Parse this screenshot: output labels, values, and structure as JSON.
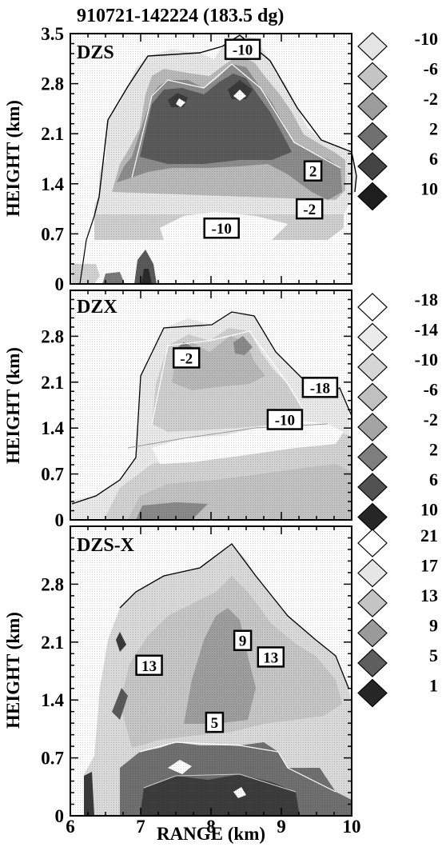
{
  "title": "910721-142224 (183.5 dg)",
  "xlabel": "RANGE (km)",
  "ylabel": "HEIGHT (km)",
  "x_ticks": [
    "6",
    "7",
    "8",
    "9",
    "10"
  ],
  "y_ticks": [
    "0",
    "0.7",
    "1.4",
    "2.1",
    "2.8",
    "3.5"
  ],
  "panels": [
    {
      "name": "DZS",
      "legend": [
        "-10",
        "-6",
        "-2",
        "2",
        "6",
        "10"
      ],
      "annotations": [
        {
          "text": "-10",
          "x": 8.45,
          "y": 3.28
        },
        {
          "text": "2",
          "x": 9.45,
          "y": 1.58
        },
        {
          "text": "-2",
          "x": 9.4,
          "y": 1.05
        },
        {
          "text": "-10",
          "x": 8.15,
          "y": 0.78
        }
      ]
    },
    {
      "name": "DZX",
      "legend": [
        "-18",
        "-14",
        "-10",
        "-6",
        "-2",
        "2",
        "6",
        "10"
      ],
      "annotations": [
        {
          "text": "-2",
          "x": 7.65,
          "y": 2.47
        },
        {
          "text": "-18",
          "x": 9.55,
          "y": 2.02
        },
        {
          "text": "-10",
          "x": 9.05,
          "y": 1.53
        }
      ]
    },
    {
      "name": "DZS-X",
      "legend": [
        "21",
        "17",
        "13",
        "9",
        "5",
        "1"
      ],
      "annotations": [
        {
          "text": "9",
          "x": 8.45,
          "y": 2.12
        },
        {
          "text": "13",
          "x": 7.12,
          "y": 1.82
        },
        {
          "text": "13",
          "x": 8.85,
          "y": 1.92
        },
        {
          "text": "5",
          "x": 8.05,
          "y": 1.13
        }
      ]
    }
  ],
  "chart_data": [
    {
      "type": "heatmap",
      "title": "DZS",
      "xlabel": "",
      "ylabel": "HEIGHT (km)",
      "xlim": [
        6,
        10
      ],
      "ylim": [
        0,
        3.5
      ],
      "contour_levels": [
        -10,
        -6,
        -2,
        2,
        6,
        10
      ],
      "labeled_contours": [
        {
          "value": -10,
          "x": 8.45,
          "y": 3.28
        },
        {
          "value": 2,
          "x": 9.45,
          "y": 1.58
        },
        {
          "value": -2,
          "x": 9.4,
          "y": 1.05
        },
        {
          "value": -10,
          "x": 8.15,
          "y": 0.78
        }
      ]
    },
    {
      "type": "heatmap",
      "title": "DZX",
      "xlabel": "",
      "ylabel": "HEIGHT (km)",
      "xlim": [
        6,
        10
      ],
      "ylim": [
        0,
        3.5
      ],
      "contour_levels": [
        -18,
        -14,
        -10,
        -6,
        -2,
        2,
        6,
        10
      ],
      "labeled_contours": [
        {
          "value": -2,
          "x": 7.65,
          "y": 2.47
        },
        {
          "value": -18,
          "x": 9.55,
          "y": 2.02
        },
        {
          "value": -10,
          "x": 9.05,
          "y": 1.53
        }
      ]
    },
    {
      "type": "heatmap",
      "title": "DZS-X",
      "xlabel": "RANGE (km)",
      "ylabel": "HEIGHT (km)",
      "xlim": [
        6,
        10
      ],
      "ylim": [
        0,
        3.5
      ],
      "contour_levels": [
        1,
        5,
        9,
        13,
        17,
        21
      ],
      "labeled_contours": [
        {
          "value": 9,
          "x": 8.45,
          "y": 2.12
        },
        {
          "value": 13,
          "x": 7.12,
          "y": 1.82
        },
        {
          "value": 13,
          "x": 8.85,
          "y": 1.92
        },
        {
          "value": 5,
          "x": 8.05,
          "y": 1.13
        }
      ]
    }
  ]
}
